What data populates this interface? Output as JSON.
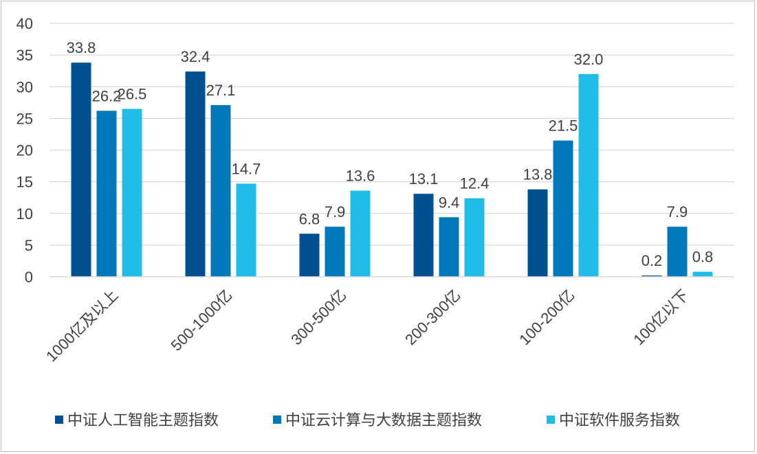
{
  "chart_data": {
    "type": "bar",
    "title": "",
    "xlabel": "",
    "ylabel": "",
    "ylim": [
      0,
      40
    ],
    "yticks": [
      0,
      5,
      10,
      15,
      20,
      25,
      30,
      35,
      40
    ],
    "grid": true,
    "legend_position": "bottom",
    "categories": [
      "1000亿及以上",
      "500-1000亿",
      "300-500亿",
      "200-300亿",
      "100-200亿",
      "100亿以下"
    ],
    "series": [
      {
        "name": "中证人工智能主题指数",
        "color": "#004f91",
        "values": [
          33.8,
          32.4,
          6.8,
          13.1,
          13.8,
          0.2
        ],
        "labels": [
          "33.8",
          "32.4",
          "6.8",
          "13.1",
          "13.8",
          "0.2"
        ]
      },
      {
        "name": "中证云计算与大数据主题指数",
        "color": "#0078b9",
        "values": [
          26.2,
          27.1,
          7.9,
          9.4,
          21.5,
          7.9
        ],
        "labels": [
          "26.2",
          "27.1",
          "7.9",
          "9.4",
          "21.5",
          "7.9"
        ]
      },
      {
        "name": "中证软件服务指数",
        "color": "#1fbde6",
        "values": [
          26.5,
          14.7,
          13.6,
          12.4,
          32.0,
          0.8
        ],
        "labels": [
          "26.5",
          "14.7",
          "13.6",
          "12.4",
          "32.0",
          "0.8"
        ]
      }
    ]
  }
}
